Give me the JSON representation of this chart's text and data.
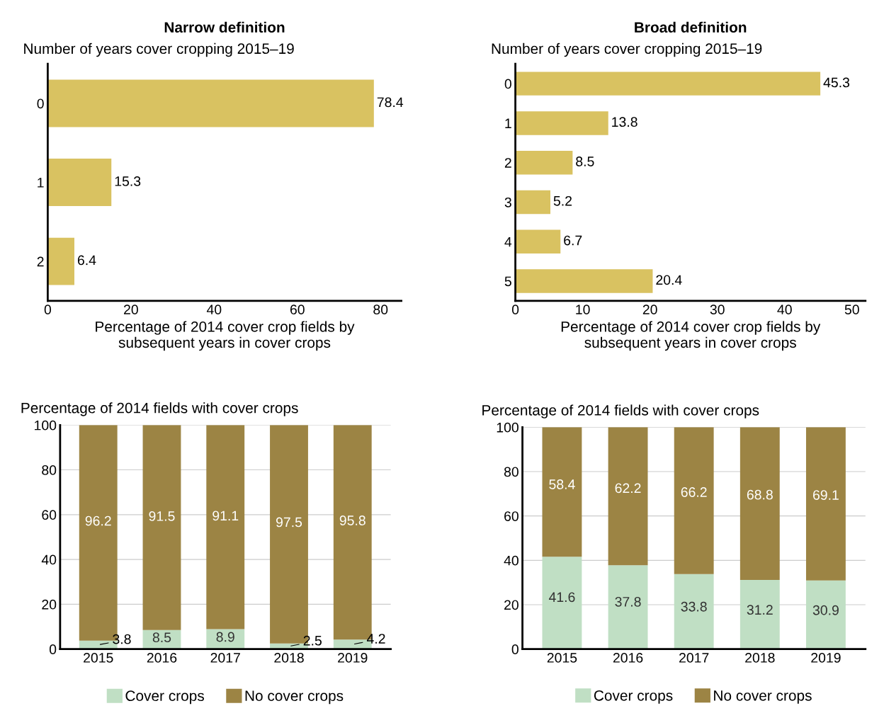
{
  "chart_data": [
    {
      "type": "bar",
      "orientation": "horizontal",
      "title": "Narrow definition",
      "subtitle": "Number of years cover cropping 2015–19",
      "xlabel": "Percentage of 2014 cover crop fields by\nsubsequent years in cover crops",
      "categories": [
        "0",
        "1",
        "2"
      ],
      "values": [
        78.4,
        15.3,
        6.4
      ],
      "color": "#d9c261",
      "xlim": [
        0,
        85
      ],
      "xticks": [
        0,
        20,
        40,
        60,
        80
      ],
      "data_labels": true,
      "grid": false,
      "legend": false
    },
    {
      "type": "bar",
      "orientation": "horizontal",
      "title": "Broad definition",
      "subtitle": "Number of years cover cropping 2015–19",
      "xlabel": "Percentage of 2014 cover crop fields by\nsubsequent years in cover crops",
      "categories": [
        "0",
        "1",
        "2",
        "3",
        "4",
        "5"
      ],
      "values": [
        45.3,
        13.8,
        8.5,
        5.2,
        6.7,
        20.4
      ],
      "color": "#d9c261",
      "xlim": [
        0,
        52
      ],
      "xticks": [
        0,
        10,
        20,
        30,
        40,
        50
      ],
      "data_labels": true,
      "grid": false,
      "legend": false
    },
    {
      "type": "bar",
      "stacked": true,
      "title": "Percentage of 2014 fields with cover crops",
      "categories": [
        "2015",
        "2016",
        "2017",
        "2018",
        "2019"
      ],
      "series": [
        {
          "name": "Cover crops",
          "color": "#c0dfc4",
          "values": [
            3.8,
            8.5,
            8.9,
            2.5,
            4.2
          ]
        },
        {
          "name": "No cover crops",
          "color": "#9c8444",
          "values": [
            96.2,
            91.5,
            91.1,
            97.5,
            95.8
          ]
        }
      ],
      "ylim": [
        0,
        100
      ],
      "yticks": [
        0,
        20,
        40,
        60,
        80,
        100
      ],
      "data_labels": true,
      "grid": "y",
      "legend": "bottom"
    },
    {
      "type": "bar",
      "stacked": true,
      "title": "Percentage of 2014 fields with cover crops",
      "categories": [
        "2015",
        "2016",
        "2017",
        "2018",
        "2019"
      ],
      "series": [
        {
          "name": "Cover crops",
          "color": "#c0dfc4",
          "values": [
            41.6,
            37.8,
            33.8,
            31.2,
            30.9
          ]
        },
        {
          "name": "No cover crops",
          "color": "#9c8444",
          "values": [
            58.4,
            62.2,
            66.2,
            68.8,
            69.1
          ]
        }
      ],
      "ylim": [
        0,
        100
      ],
      "yticks": [
        0,
        20,
        40,
        60,
        80,
        100
      ],
      "data_labels": true,
      "grid": "y",
      "legend": "bottom"
    }
  ]
}
